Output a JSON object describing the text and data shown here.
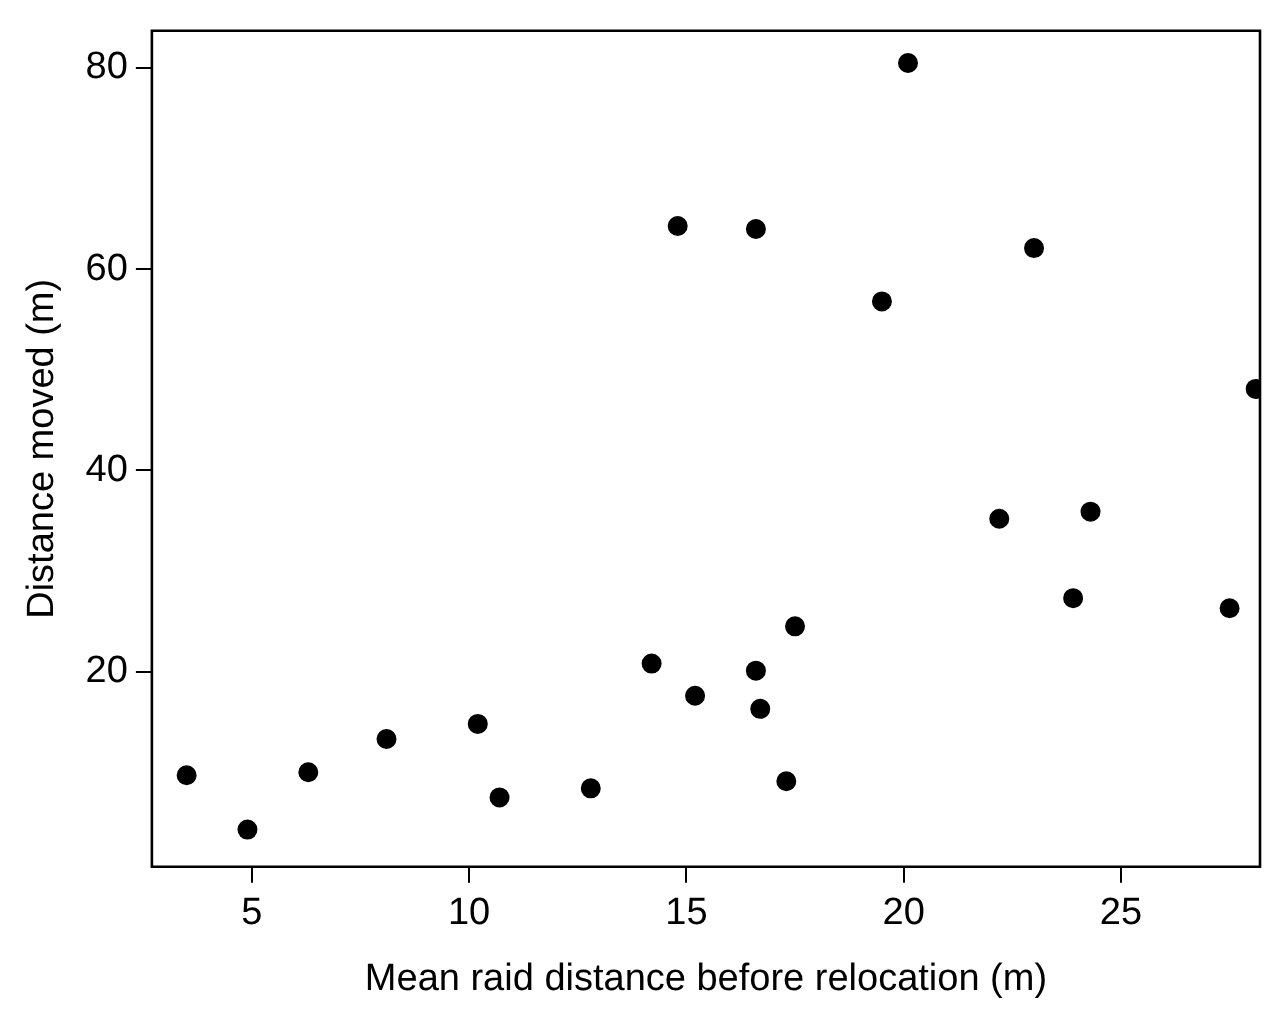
{
  "chart_data": {
    "type": "scatter",
    "xlabel": "Mean raid distance before relocation (m)",
    "ylabel": "Distance moved (m)",
    "x": [
      3.5,
      4.9,
      6.3,
      8.1,
      10.2,
      10.7,
      12.8,
      14.2,
      14.8,
      15.2,
      16.6,
      16.6,
      16.7,
      17.3,
      17.5,
      19.5,
      20.1,
      22.2,
      23.0,
      23.9,
      24.3,
      27.5,
      28.1
    ],
    "values": [
      9.7,
      4.3,
      10.0,
      13.3,
      14.8,
      7.5,
      8.4,
      20.8,
      64.3,
      17.6,
      20.1,
      64.0,
      16.3,
      9.1,
      24.5,
      56.8,
      80.5,
      35.2,
      62.1,
      27.3,
      35.9,
      26.3,
      48.1
    ],
    "color": "#000000",
    "marker": "circle",
    "xlim": [
      2.7,
      28.2
    ],
    "ylim": [
      0.6,
      83.7
    ],
    "xticks": [
      5,
      10,
      15,
      20,
      25
    ],
    "yticks": [
      20,
      40,
      60,
      80
    ],
    "grid": false,
    "legend": false
  }
}
